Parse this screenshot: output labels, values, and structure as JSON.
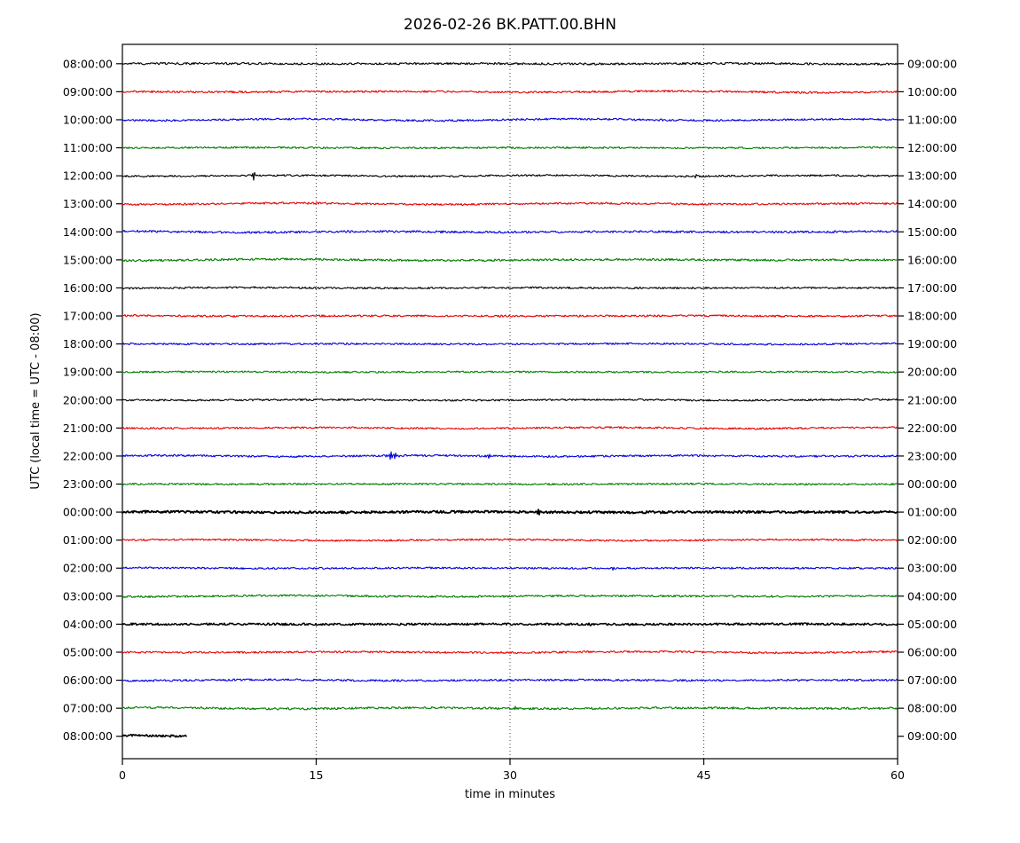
{
  "chart_data": {
    "type": "line",
    "subtype": "helicorder-dayplot",
    "title": "2026-02-26 BK.PATT.00.BHN",
    "xlabel": "time in minutes",
    "ylabel": "UTC (local time = UTC - 08:00)",
    "xlim": [
      0,
      60
    ],
    "x_ticks": [
      "0",
      "15",
      "30",
      "45",
      "60"
    ],
    "grid_minutes": [
      15,
      30,
      45
    ],
    "grid_style": "dotted",
    "minutes_per_row": 60,
    "trace_colors": {
      "black": "#000000",
      "red": "#e60000",
      "blue": "#0000dd",
      "green": "#007d00"
    },
    "rows": [
      {
        "left": "08:00:00",
        "right": "09:00:00",
        "color": "black",
        "amp": 1.2,
        "wobble": 0.7,
        "events": []
      },
      {
        "left": "09:00:00",
        "right": "10:00:00",
        "color": "red",
        "amp": 1.1,
        "wobble": 1.4,
        "events": []
      },
      {
        "left": "10:00:00",
        "right": "11:00:00",
        "color": "blue",
        "amp": 1.1,
        "wobble": 0.9,
        "events": []
      },
      {
        "left": "11:00:00",
        "right": "12:00:00",
        "color": "green",
        "amp": 1.0,
        "wobble": 0.7,
        "events": []
      },
      {
        "left": "12:00:00",
        "right": "13:00:00",
        "color": "black",
        "amp": 1.0,
        "wobble": 0.5,
        "events": [
          {
            "m": 10.2,
            "s": 5.0,
            "w": 0.1
          },
          {
            "m": 44.3,
            "s": 3.0,
            "w": 0.08
          }
        ]
      },
      {
        "left": "13:00:00",
        "right": "14:00:00",
        "color": "red",
        "amp": 1.1,
        "wobble": 0.8,
        "events": []
      },
      {
        "left": "14:00:00",
        "right": "15:00:00",
        "color": "blue",
        "amp": 1.2,
        "wobble": 1.1,
        "events": []
      },
      {
        "left": "15:00:00",
        "right": "16:00:00",
        "color": "green",
        "amp": 1.2,
        "wobble": 1.0,
        "events": []
      },
      {
        "left": "16:00:00",
        "right": "17:00:00",
        "color": "black",
        "amp": 1.0,
        "wobble": 0.5,
        "events": []
      },
      {
        "left": "17:00:00",
        "right": "18:00:00",
        "color": "red",
        "amp": 1.1,
        "wobble": 0.7,
        "events": []
      },
      {
        "left": "18:00:00",
        "right": "19:00:00",
        "color": "blue",
        "amp": 1.0,
        "wobble": 0.6,
        "events": []
      },
      {
        "left": "19:00:00",
        "right": "20:00:00",
        "color": "green",
        "amp": 1.0,
        "wobble": 0.6,
        "events": []
      },
      {
        "left": "20:00:00",
        "right": "21:00:00",
        "color": "black",
        "amp": 1.0,
        "wobble": 0.4,
        "events": []
      },
      {
        "left": "21:00:00",
        "right": "22:00:00",
        "color": "red",
        "amp": 1.0,
        "wobble": 0.6,
        "events": []
      },
      {
        "left": "22:00:00",
        "right": "23:00:00",
        "color": "blue",
        "amp": 1.1,
        "wobble": 0.6,
        "events": [
          {
            "m": 20.9,
            "s": 5.0,
            "w": 0.25
          },
          {
            "m": 28.4,
            "s": 2.2,
            "w": 0.12
          }
        ]
      },
      {
        "left": "23:00:00",
        "right": "00:00:00",
        "color": "green",
        "amp": 1.0,
        "wobble": 0.5,
        "events": []
      },
      {
        "left": "00:00:00",
        "right": "01:00:00",
        "color": "black",
        "amp": 1.3,
        "wobble": 0.4,
        "lw": 1.8,
        "events": [
          {
            "m": 32.3,
            "s": 3.5,
            "w": 0.15
          }
        ]
      },
      {
        "left": "01:00:00",
        "right": "02:00:00",
        "color": "red",
        "amp": 1.0,
        "wobble": 0.6,
        "events": []
      },
      {
        "left": "02:00:00",
        "right": "03:00:00",
        "color": "blue",
        "amp": 1.0,
        "wobble": 0.4,
        "events": [
          {
            "m": 37.9,
            "s": 1.6,
            "w": 0.08
          }
        ]
      },
      {
        "left": "03:00:00",
        "right": "04:00:00",
        "color": "green",
        "amp": 1.1,
        "wobble": 0.6,
        "events": []
      },
      {
        "left": "04:00:00",
        "right": "05:00:00",
        "color": "black",
        "amp": 1.2,
        "wobble": 0.4,
        "lw": 1.5,
        "events": [
          {
            "m": 36.2,
            "s": 2.5,
            "w": 0.1
          }
        ]
      },
      {
        "left": "05:00:00",
        "right": "06:00:00",
        "color": "red",
        "amp": 1.1,
        "wobble": 0.7,
        "events": []
      },
      {
        "left": "06:00:00",
        "right": "07:00:00",
        "color": "blue",
        "amp": 1.1,
        "wobble": 0.6,
        "events": []
      },
      {
        "left": "07:00:00",
        "right": "08:00:00",
        "color": "green",
        "amp": 1.2,
        "wobble": 0.7,
        "events": [
          {
            "m": 30.4,
            "s": 3.0,
            "w": 0.12
          }
        ]
      },
      {
        "left": "08:00:00",
        "right": "09:00:00",
        "color": "black",
        "amp": 1.2,
        "wobble": 1.3,
        "lw": 1.6,
        "end": 5.0,
        "events": []
      }
    ]
  }
}
